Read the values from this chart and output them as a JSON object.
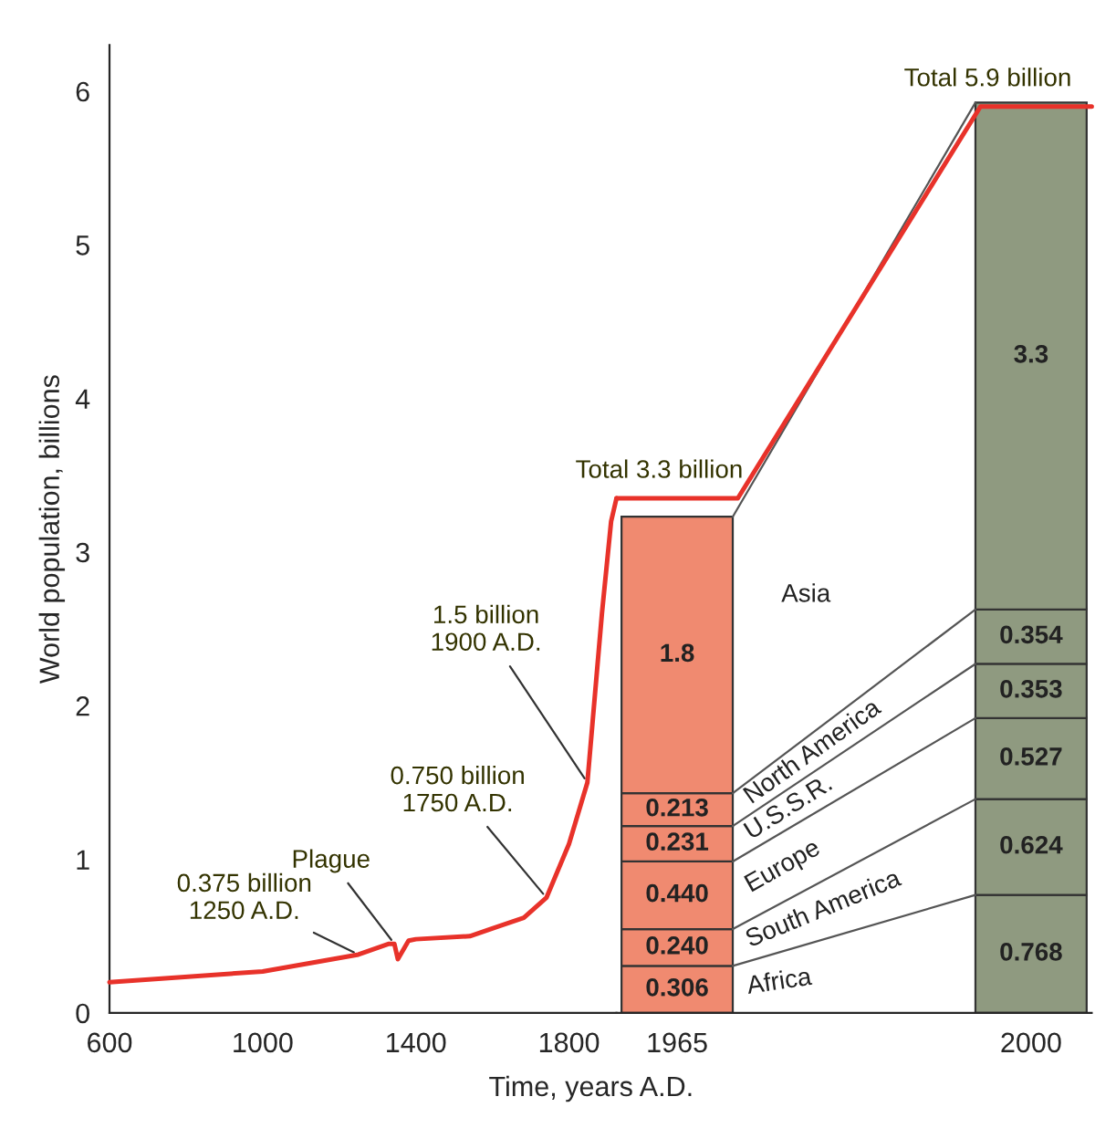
{
  "chart_data": [
    {
      "type": "line",
      "xlabel": "Time, years A.D.",
      "ylabel": "World population, billions",
      "xlim": [
        600,
        1924
      ],
      "xticks": [
        600,
        1000,
        1400,
        1800
      ],
      "ylim": [
        0,
        6.3
      ],
      "yticks": [
        0,
        1,
        2,
        3,
        4,
        5,
        6
      ],
      "grid": false,
      "legend": false,
      "series": [
        {
          "color": "#e8322a",
          "x": [
            600,
            1000,
            1250,
            1330,
            1344,
            1353,
            1381,
            1400,
            1541,
            1682,
            1741,
            1800,
            1848,
            1886,
            1910,
            1924
          ],
          "values": [
            0.2,
            0.27,
            0.38,
            0.45,
            0.45,
            0.35,
            0.47,
            0.48,
            0.5,
            0.62,
            0.75,
            1.1,
            1.5,
            2.6,
            3.2,
            3.35
          ]
        }
      ],
      "annotations": [
        {
          "text": "0.375 billion\n1250 A.D.",
          "x": 1250,
          "y": 0.38
        },
        {
          "text": "Plague",
          "x": 1344,
          "y": 0.45
        },
        {
          "text": "0.750 billion\n1750 A.D.",
          "x": 1741,
          "y": 0.75
        },
        {
          "text": "1.5 billion\n1900 A.D.",
          "x": 1848,
          "y": 1.5
        }
      ]
    },
    {
      "type": "bar",
      "stacked": true,
      "xlim": [
        1959,
        2006
      ],
      "xticks": [
        1965,
        2000
      ],
      "tick_labels": "x",
      "grid": false,
      "legend": false,
      "series": [
        {
          "name": "Africa",
          "x": [
            1965,
            2000
          ],
          "values": [
            0.306,
            0.768
          ],
          "value_labels": [
            "0.306",
            "0.768"
          ],
          "colors": [
            "#f08a70",
            "#8f9a80"
          ]
        },
        {
          "name": "South America",
          "x": [
            1965,
            2000
          ],
          "values": [
            0.24,
            0.624
          ],
          "value_labels": [
            "0.240",
            "0.624"
          ],
          "colors": [
            "#f08a70",
            "#8f9a80"
          ]
        },
        {
          "name": "Europe",
          "x": [
            1965,
            2000
          ],
          "values": [
            0.44,
            0.527
          ],
          "value_labels": [
            "0.440",
            "0.527"
          ],
          "colors": [
            "#f08a70",
            "#8f9a80"
          ]
        },
        {
          "name": "U.S.S.R.",
          "x": [
            1965,
            2000
          ],
          "values": [
            0.231,
            0.353
          ],
          "value_labels": [
            "0.231",
            "0.353"
          ],
          "colors": [
            "#f08a70",
            "#8f9a80"
          ]
        },
        {
          "name": "North America",
          "x": [
            1965,
            2000
          ],
          "values": [
            0.213,
            0.354
          ],
          "value_labels": [
            "0.213",
            "0.354"
          ],
          "colors": [
            "#f08a70",
            "#8f9a80"
          ]
        },
        {
          "name": "Asia",
          "x": [
            1965,
            2000
          ],
          "values": [
            1.8,
            3.3
          ],
          "value_labels": [
            "1.8",
            "3.3"
          ],
          "colors": [
            "#f08a70",
            "#8f9a80"
          ]
        },
        {
          "type": "line",
          "color": "#e8322a",
          "x": [
            1959,
            1971,
            1995,
            2006
          ],
          "values": [
            3.35,
            3.35,
            5.9,
            5.9
          ]
        }
      ],
      "annotations": [
        {
          "text": "Total 3.3 billion",
          "x": 1965,
          "y": 3.35
        },
        {
          "text": "Total 5.9 billion",
          "x": 2000,
          "y": 5.9
        }
      ]
    }
  ]
}
